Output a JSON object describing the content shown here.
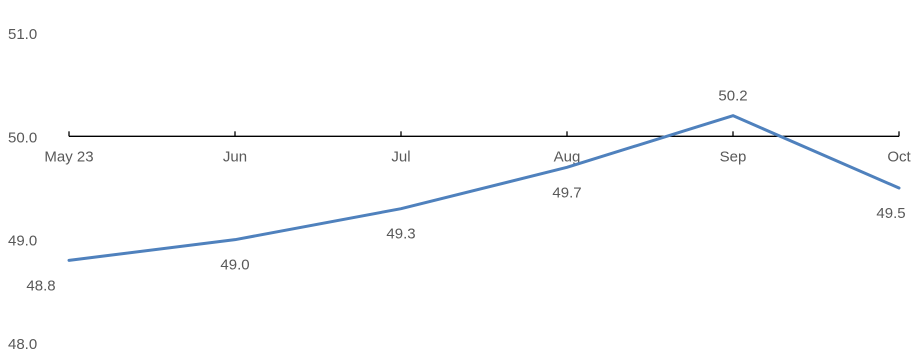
{
  "chart_data": {
    "type": "line",
    "categories": [
      "May 23",
      "Jun",
      "Jul",
      "Aug",
      "Sep",
      "Oct"
    ],
    "series": [
      {
        "values": [
          48.8,
          49.0,
          49.3,
          49.7,
          50.2,
          49.5
        ]
      }
    ],
    "y_ticks": [
      "51.0",
      "50.0",
      "49.0",
      "48.0"
    ],
    "data_labels": [
      "48.8",
      "49.0",
      "49.3",
      "49.7",
      "50.2",
      "49.5"
    ],
    "ylim": [
      48.0,
      51.0
    ],
    "x_axis_crosses_at": 50.0,
    "title": "",
    "xlabel": "",
    "ylabel": "",
    "grid": false,
    "legend": "none",
    "line_color": "#4F81BD",
    "axis_color": "#000000",
    "label_color": "#595959"
  }
}
